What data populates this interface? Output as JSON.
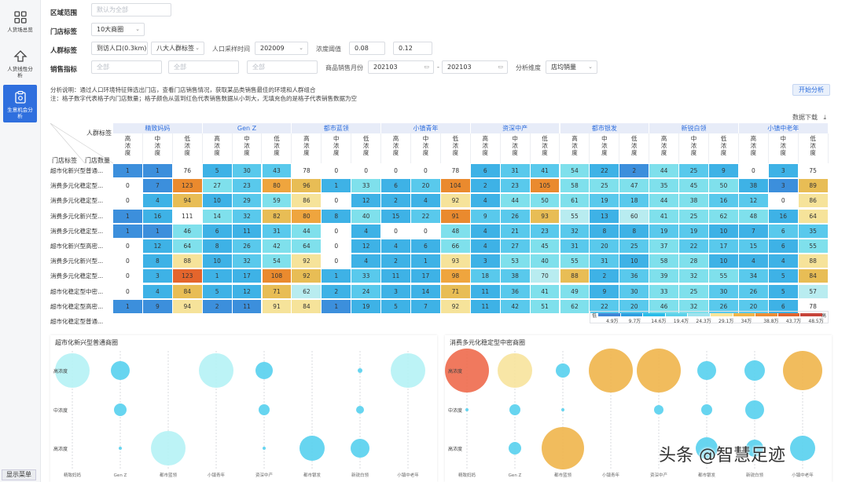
{
  "sidebar": {
    "items": [
      {
        "label": "人货场总览",
        "icon": "grid-icon",
        "active": false
      },
      {
        "label": "人货线性分析",
        "icon": "up-arrow-icon",
        "active": false
      },
      {
        "label": "生意机会分析",
        "icon": "clipboard-icon",
        "active": true
      }
    ],
    "menu_button": "显示菜单"
  },
  "filters": {
    "region_label": "区域范围",
    "region_placeholder": "默认为全部",
    "store_tag_label": "门店标签",
    "store_tag_value": "10大商圈",
    "crowd_tag_label": "人群标签",
    "crowd_select1": "到访人口(0.3km)",
    "crowd_select2": "八大人群标签",
    "sample_time_label": "人口采样时间",
    "sample_time_value": "202009",
    "threshold_label": "浓度阈值",
    "threshold_low": "0.08",
    "threshold_high": "0.12",
    "sales_label": "销售指标",
    "sales_sel1": "全部",
    "sales_sel2": "全部",
    "sales_sel3": "全部",
    "sales_month_label": "商品销售月份",
    "month_from": "202103",
    "month_sep": "-",
    "month_to": "202103",
    "dimension_label": "分析维度",
    "dimension_value": "店均销量",
    "note1": "分析说明：通过人口环境特征筛选出门店，查看门店销售情况，获取某品类销售最佳的环境和人群组合",
    "note2": "注：格子数字代表格子内门店数量；格子颜色从蓝到红色代表销售数据从小到大，无填充色的是格子代表销售数据为空",
    "start_button": "开始分析",
    "download_label": "数据下载"
  },
  "heatmap": {
    "corner_top": "人群标签",
    "corner_left": "门店标签",
    "corner_right": "门店数量",
    "groups": [
      "精致妈妈",
      "Gen Z",
      "都市蓝领",
      "小镇青年",
      "资深中产",
      "都市银发",
      "新锐白领",
      "小镇中老年"
    ],
    "sublevels": [
      "高浓度",
      "中浓度",
      "低浓度"
    ],
    "rows": [
      {
        "label": "超市化新兴型普通...",
        "values": [
          1,
          1,
          76,
          5,
          30,
          43,
          78,
          0,
          0,
          0,
          0,
          78,
          6,
          31,
          41,
          54,
          22,
          2,
          44,
          25,
          9,
          0,
          3,
          75
        ],
        "colors": [
          7,
          7,
          0,
          6,
          5,
          5,
          0,
          0,
          0,
          0,
          0,
          0,
          6,
          5,
          5,
          4,
          6,
          7,
          4,
          5,
          6,
          0,
          6,
          0
        ]
      },
      {
        "label": "消费多元化稳定型...",
        "values": [
          0,
          7,
          123,
          27,
          23,
          80,
          96,
          1,
          33,
          6,
          20,
          104,
          2,
          23,
          105,
          58,
          25,
          47,
          35,
          45,
          50,
          38,
          3,
          89
        ],
        "colors": [
          0,
          7,
          10,
          4,
          5,
          9,
          8,
          6,
          4,
          6,
          5,
          10,
          6,
          5,
          10,
          4,
          4,
          4,
          4,
          4,
          4,
          6,
          7,
          8
        ]
      },
      {
        "label": "消费多元化稳定型...",
        "values": [
          0,
          4,
          94,
          10,
          29,
          59,
          86,
          0,
          12,
          2,
          4,
          92,
          4,
          44,
          50,
          61,
          19,
          18,
          44,
          38,
          16,
          12,
          0,
          86
        ],
        "colors": [
          0,
          6,
          8,
          6,
          5,
          4,
          2,
          0,
          6,
          6,
          6,
          2,
          6,
          4,
          4,
          4,
          5,
          5,
          4,
          4,
          5,
          5,
          0,
          2
        ]
      },
      {
        "label": "消费多元化新兴型...",
        "values": [
          1,
          16,
          111,
          14,
          32,
          82,
          80,
          8,
          40,
          15,
          22,
          91,
          9,
          26,
          93,
          55,
          13,
          60,
          41,
          25,
          62,
          48,
          16,
          64
        ],
        "colors": [
          7,
          6,
          0,
          4,
          5,
          8,
          9,
          6,
          4,
          6,
          5,
          10,
          5,
          5,
          8,
          3,
          6,
          3,
          4,
          4,
          4,
          4,
          6,
          2
        ]
      },
      {
        "label": "消费多元化稳定型...",
        "values": [
          1,
          1,
          46,
          6,
          11,
          31,
          44,
          0,
          4,
          0,
          0,
          48,
          4,
          21,
          23,
          32,
          8,
          8,
          19,
          19,
          10,
          7,
          6,
          35
        ],
        "colors": [
          7,
          7,
          4,
          6,
          6,
          5,
          4,
          0,
          6,
          0,
          0,
          4,
          6,
          5,
          5,
          5,
          6,
          6,
          5,
          5,
          6,
          6,
          5,
          5
        ]
      },
      {
        "label": "超市化新兴型高密...",
        "values": [
          0,
          12,
          64,
          8,
          26,
          42,
          64,
          0,
          12,
          4,
          6,
          66,
          4,
          27,
          45,
          31,
          20,
          25,
          37,
          22,
          17,
          15,
          6,
          55
        ],
        "colors": [
          0,
          6,
          4,
          6,
          5,
          4,
          4,
          0,
          6,
          6,
          6,
          4,
          6,
          5,
          4,
          5,
          5,
          5,
          4,
          5,
          5,
          5,
          6,
          4
        ]
      },
      {
        "label": "消费多元化新兴型...",
        "values": [
          0,
          8,
          88,
          10,
          32,
          54,
          92,
          0,
          4,
          2,
          1,
          93,
          3,
          53,
          40,
          55,
          31,
          10,
          58,
          28,
          10,
          4,
          4,
          88
        ],
        "colors": [
          0,
          6,
          2,
          6,
          5,
          4,
          2,
          0,
          6,
          6,
          6,
          2,
          6,
          4,
          4,
          4,
          5,
          6,
          4,
          4,
          6,
          6,
          6,
          2
        ]
      },
      {
        "label": "消费多元化稳定型...",
        "values": [
          0,
          3,
          123,
          1,
          17,
          108,
          92,
          1,
          33,
          11,
          17,
          98,
          18,
          38,
          70,
          88,
          2,
          36,
          39,
          32,
          55,
          34,
          5,
          84
        ],
        "colors": [
          0,
          6,
          11,
          6,
          6,
          10,
          8,
          6,
          5,
          6,
          6,
          9,
          5,
          5,
          3,
          8,
          6,
          5,
          4,
          4,
          4,
          5,
          6,
          8
        ]
      },
      {
        "label": "超市化稳定型中密...",
        "values": [
          0,
          4,
          84,
          5,
          12,
          71,
          62,
          2,
          24,
          3,
          14,
          71,
          11,
          36,
          41,
          49,
          9,
          30,
          33,
          25,
          30,
          26,
          5,
          57
        ],
        "colors": [
          0,
          6,
          8,
          6,
          6,
          8,
          3,
          6,
          5,
          6,
          6,
          8,
          6,
          5,
          4,
          4,
          6,
          5,
          4,
          4,
          5,
          5,
          6,
          3
        ]
      },
      {
        "label": "超市化稳定型高密...",
        "values": [
          1,
          9,
          94,
          2,
          11,
          91,
          84,
          1,
          19,
          5,
          7,
          92,
          11,
          42,
          51,
          62,
          22,
          20,
          46,
          32,
          26,
          20,
          6,
          78
        ],
        "colors": [
          7,
          7,
          2,
          7,
          7,
          2,
          2,
          7,
          6,
          6,
          6,
          2,
          6,
          5,
          4,
          4,
          5,
          5,
          4,
          4,
          5,
          5,
          6,
          0
        ]
      },
      {
        "label": "超市化稳定型普通...",
        "values": [],
        "colors": []
      }
    ],
    "palette": [
      "#ffffff",
      "#fff1b0",
      "#f6e39a",
      "#b8ecf0",
      "#7fe0ec",
      "#59c9ec",
      "#3eb2e6",
      "#3c8fdc",
      "#e8bd55",
      "#efa53e",
      "#ea8a2e",
      "#e4652c"
    ]
  },
  "legend": {
    "low": "低",
    "high": "高",
    "ticks": [
      "4.9万",
      "9.7万",
      "14.6万",
      "19.4万",
      "24.3万",
      "29.1万",
      "34万",
      "38.8万",
      "43.7万",
      "48.5万"
    ],
    "colors": [
      "#3f86d7",
      "#2f9ee0",
      "#2bbbe8",
      "#5dd1ea",
      "#9fe3ee",
      "#fbe59a",
      "#f0b54b",
      "#ec8c35",
      "#e0642f",
      "#c7443a"
    ]
  },
  "bubble_left": {
    "title": "超市化新兴型普通商圈",
    "rows": [
      "高浓度",
      "中浓度",
      "高浓度"
    ],
    "cols": [
      "精致妈妈",
      "Gen Z",
      "都市蓝领",
      "小镇青年",
      "资深中产",
      "都市银发",
      "新锐白领",
      "小镇中老年"
    ],
    "bubbles": [
      {
        "col": 0,
        "row": 0,
        "r": 22,
        "color": "#b5f2f5"
      },
      {
        "col": 1,
        "row": 0,
        "r": 12,
        "color": "#56d0ee"
      },
      {
        "col": 3,
        "row": 0,
        "r": 22,
        "color": "#b5f2f5"
      },
      {
        "col": 4,
        "row": 0,
        "r": 11,
        "color": "#56d0ee"
      },
      {
        "col": 6,
        "row": 0,
        "r": 3,
        "color": "#56d0ee"
      },
      {
        "col": 7,
        "row": 0,
        "r": 22,
        "color": "#b5f2f5"
      },
      {
        "col": 1,
        "row": 1,
        "r": 8,
        "color": "#56d0ee"
      },
      {
        "col": 4,
        "row": 1,
        "r": 7,
        "color": "#56d0ee"
      },
      {
        "col": 6,
        "row": 1,
        "r": 5,
        "color": "#56d0ee"
      },
      {
        "col": 1,
        "row": 2,
        "r": 2,
        "color": "#56d0ee"
      },
      {
        "col": 2,
        "row": 2,
        "r": 22,
        "color": "#b5f2f5"
      },
      {
        "col": 4,
        "row": 2,
        "r": 2,
        "color": "#56d0ee"
      },
      {
        "col": 5,
        "row": 2,
        "r": 16,
        "color": "#56d0ee"
      },
      {
        "col": 6,
        "row": 2,
        "r": 12,
        "color": "#56d0ee"
      }
    ]
  },
  "bubble_right": {
    "title": "消费多元化稳定型中密商圈",
    "rows": [
      "高浓度",
      "中浓度",
      "高浓度"
    ],
    "cols": [
      "精致妈妈",
      "Gen Z",
      "都市蓝领",
      "小镇青年",
      "资深中产",
      "都市银发",
      "新锐白领",
      "小镇中老年"
    ],
    "bubbles": [
      {
        "col": 0,
        "row": 0,
        "r": 28,
        "color": "#ee6a4d"
      },
      {
        "col": 1,
        "row": 0,
        "r": 22,
        "color": "#f7e39c"
      },
      {
        "col": 2,
        "row": 0,
        "r": 9,
        "color": "#56d0ee"
      },
      {
        "col": 3,
        "row": 0,
        "r": 28,
        "color": "#f0b54b"
      },
      {
        "col": 4,
        "row": 0,
        "r": 28,
        "color": "#f0b54b"
      },
      {
        "col": 5,
        "row": 0,
        "r": 12,
        "color": "#56d0ee"
      },
      {
        "col": 6,
        "row": 0,
        "r": 13,
        "color": "#56d0ee"
      },
      {
        "col": 7,
        "row": 0,
        "r": 25,
        "color": "#f0b54b"
      },
      {
        "col": 0,
        "row": 1,
        "r": 2,
        "color": "#56d0ee"
      },
      {
        "col": 1,
        "row": 1,
        "r": 7,
        "color": "#56d0ee"
      },
      {
        "col": 2,
        "row": 1,
        "r": 2,
        "color": "#56d0ee"
      },
      {
        "col": 4,
        "row": 1,
        "r": 6,
        "color": "#56d0ee"
      },
      {
        "col": 5,
        "row": 1,
        "r": 7,
        "color": "#56d0ee"
      },
      {
        "col": 6,
        "row": 1,
        "r": 12,
        "color": "#56d0ee"
      },
      {
        "col": 1,
        "row": 2,
        "r": 8,
        "color": "#56d0ee"
      },
      {
        "col": 2,
        "row": 2,
        "r": 27,
        "color": "#f0b54b"
      },
      {
        "col": 5,
        "row": 2,
        "r": 14,
        "color": "#56d0ee"
      },
      {
        "col": 6,
        "row": 2,
        "r": 11,
        "color": "#56d0ee"
      },
      {
        "col": 7,
        "row": 2,
        "r": 16,
        "color": "#56d0ee"
      }
    ]
  },
  "watermark": "头条 @智慧足迹"
}
